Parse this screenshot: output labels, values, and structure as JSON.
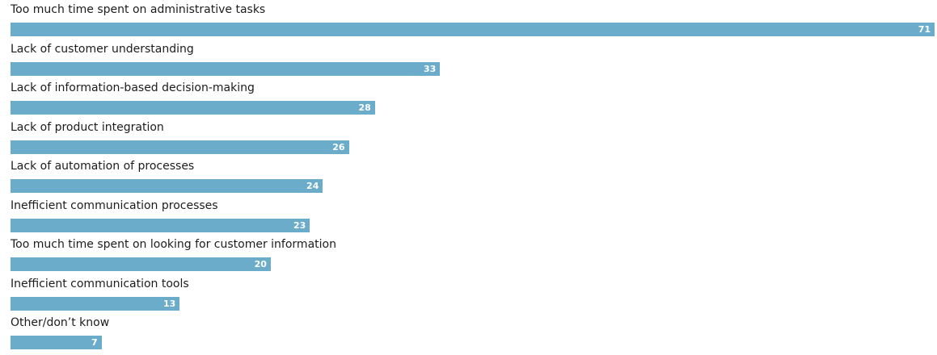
{
  "chart_data": {
    "type": "bar",
    "orientation": "horizontal",
    "title": "",
    "xlabel": "",
    "ylabel": "",
    "categories": [
      "Too much time spent on administrative tasks",
      "Lack of customer understanding",
      "Lack of information-based decision-making",
      "Lack of product integration",
      "Lack of automation of processes",
      "Inefficient communication processes",
      "Too much time spent on looking for customer information",
      "Inefficient communication tools",
      "Other/don’t know"
    ],
    "values": [
      71,
      33,
      28,
      26,
      24,
      23,
      20,
      13,
      7
    ],
    "xlim": [
      0,
      71
    ],
    "grid": false,
    "legend": "none",
    "colors": {
      "bar": "#6aacc9",
      "value_label": "#ffffff",
      "category_label": "#1c1c1c"
    }
  }
}
